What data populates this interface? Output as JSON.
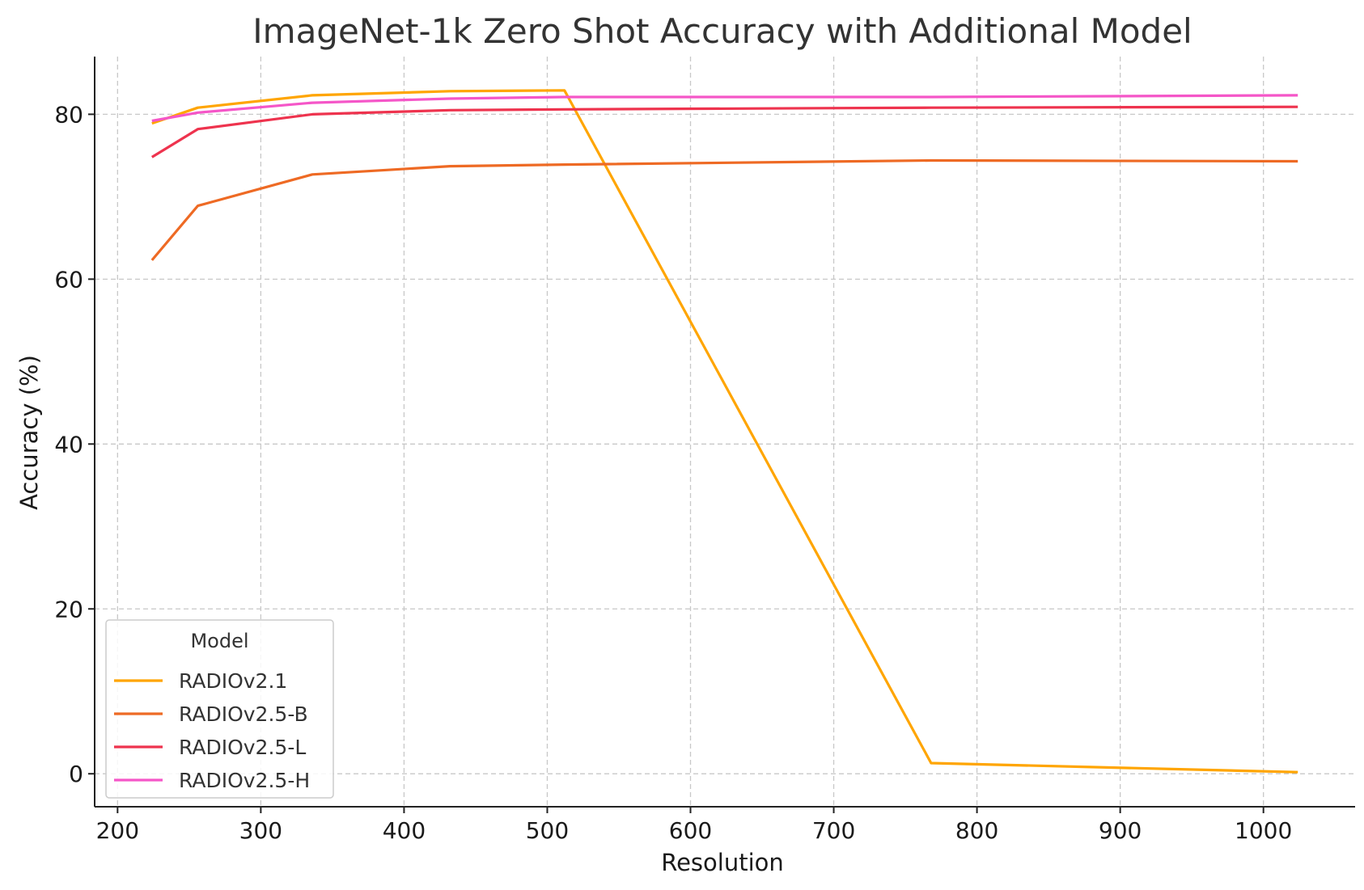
{
  "chart_data": {
    "type": "line",
    "title": "ImageNet-1k Zero Shot Accuracy with Additional Model",
    "xlabel": "Resolution",
    "ylabel": "Accuracy (%)",
    "xlim": [
      184,
      1064
    ],
    "ylim": [
      -4,
      87
    ],
    "xticks": [
      200,
      300,
      400,
      500,
      600,
      700,
      800,
      900,
      1000
    ],
    "yticks": [
      0,
      20,
      40,
      60,
      80
    ],
    "grid": true,
    "legend": {
      "title": "Model",
      "placement": "bottom-left"
    },
    "series": [
      {
        "name": "RADIOv2.1",
        "color": "#FFA500",
        "x": [
          224,
          256,
          336,
          432,
          512,
          768,
          1024
        ],
        "y": [
          78.9,
          80.8,
          82.3,
          82.8,
          82.9,
          1.3,
          0.2
        ]
      },
      {
        "name": "RADIOv2.5-B",
        "color": "#EE6A24",
        "x": [
          224,
          256,
          336,
          432,
          512,
          768,
          1024
        ],
        "y": [
          62.3,
          68.9,
          72.7,
          73.7,
          73.9,
          74.4,
          74.3
        ]
      },
      {
        "name": "RADIOv2.5-L",
        "color": "#EE334E",
        "x": [
          224,
          256,
          336,
          432,
          512,
          768,
          1024
        ],
        "y": [
          74.8,
          78.2,
          80.0,
          80.5,
          80.6,
          80.8,
          80.9
        ]
      },
      {
        "name": "RADIOv2.5-H",
        "color": "#F556C8",
        "x": [
          224,
          256,
          336,
          432,
          512,
          768,
          1024
        ],
        "y": [
          79.2,
          80.2,
          81.4,
          81.9,
          82.1,
          82.1,
          82.3
        ]
      }
    ]
  }
}
